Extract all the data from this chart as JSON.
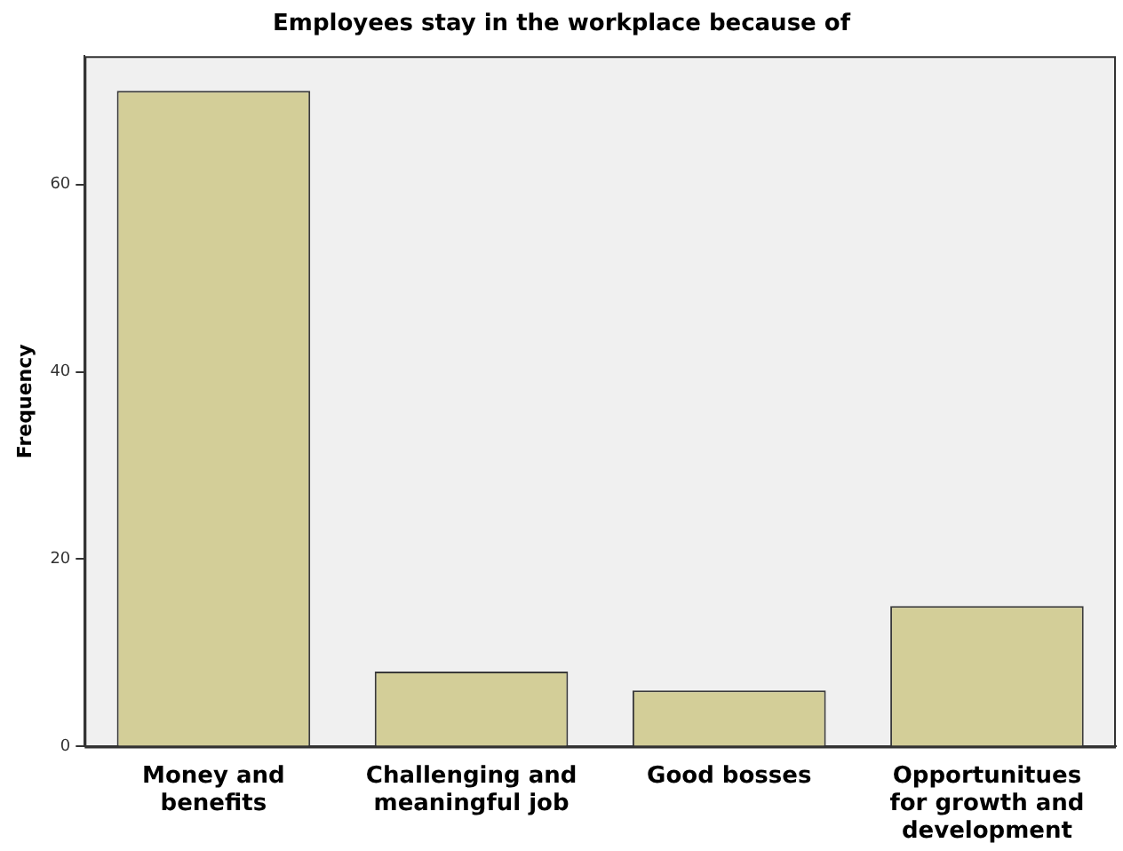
{
  "chart_data": {
    "type": "bar",
    "title": "Employees stay in the workplace because of",
    "ylabel": "Frequency",
    "categories": [
      "Money and benefits",
      "Challenging and meaningful job",
      "Good bosses",
      "Opportunitues for growth and development"
    ],
    "values": [
      70,
      8,
      6,
      15
    ],
    "color": "#d3ce98",
    "ylim": [
      0,
      73.7
    ],
    "yticks": [
      0,
      20,
      40,
      60
    ],
    "grid": false,
    "legend": false
  }
}
